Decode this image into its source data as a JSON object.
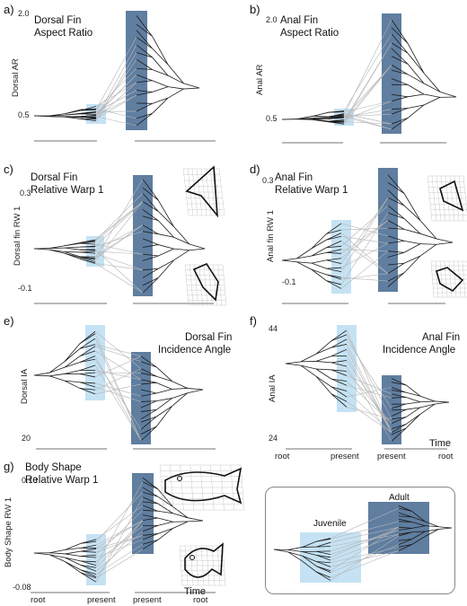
{
  "figure": {
    "panels": [
      {
        "label": "a)",
        "title_line1": "Dorsal Fin",
        "title_line2": "Aspect Ratio",
        "ylabel": "Dorsal AR",
        "ytick_top": "2.0",
        "ytick_bottom": "0.5"
      },
      {
        "label": "b)",
        "title_line1": "Anal Fin",
        "title_line2": "Aspect Ratio",
        "ylabel": "Anal AR",
        "ytick_top": "2.0",
        "ytick_bottom": "0.5"
      },
      {
        "label": "c)",
        "title_line1": "Dorsal Fin",
        "title_line2": "Relative Warp 1",
        "ylabel": "Dorsal fin RW 1",
        "ytick_top": "0.3",
        "ytick_bottom": "-0.1"
      },
      {
        "label": "d)",
        "title_line1": "Anal Fin",
        "title_line2": "Relative Warp 1",
        "ylabel": "Anal fin RW 1",
        "ytick_top": "0.3",
        "ytick_bottom": "-0.1"
      },
      {
        "label": "e)",
        "title_line1": "Dorsal Fin",
        "title_line2": "Incidence Angle",
        "ylabel": "Dorsal IA",
        "ytick_top": "",
        "ytick_bottom": "20"
      },
      {
        "label": "f)",
        "title_line1": "Anal Fin",
        "title_line2": "Incidence Angle",
        "ylabel": "Anal IA",
        "ytick_top": "44",
        "ytick_bottom": "24"
      },
      {
        "label": "g)",
        "title_line1": "Body Shape",
        "title_line2": "Relative Warp 1",
        "ylabel": "Body Shape RW 1",
        "ytick_top": "0.10",
        "ytick_bottom": "-0.08"
      }
    ],
    "axis_ticks": {
      "root": "root",
      "present": "present",
      "time": "Time"
    },
    "legend": {
      "juvenile": "Juvenile",
      "adult": "Adult"
    },
    "colors": {
      "juvenile": "#c5e2f4",
      "adult": "#5f7ea0",
      "tree_dark": "#1a1a1a",
      "tree_light": "#b5b5b5"
    }
  }
}
